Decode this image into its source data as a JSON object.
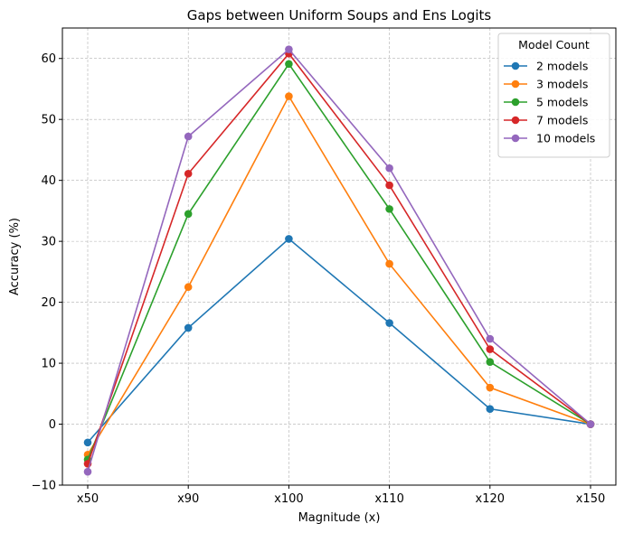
{
  "chart_data": {
    "type": "line",
    "title": "Gaps between Uniform Soups and Ens Logits",
    "xlabel": "Magnitude (x)",
    "ylabel": "Accuracy (%)",
    "categories": [
      "x50",
      "x90",
      "x100",
      "x110",
      "x120",
      "x150"
    ],
    "ylim": [
      -10,
      65
    ],
    "yticks": [
      -10,
      0,
      10,
      20,
      30,
      40,
      50,
      60
    ],
    "grid": true,
    "legend": {
      "title": "Model Count",
      "placement": "top-right"
    },
    "series": [
      {
        "name": "2 models",
        "color": "#1f77b4",
        "values": [
          -3.0,
          15.8,
          30.4,
          16.6,
          2.5,
          0.0
        ]
      },
      {
        "name": "3 models",
        "color": "#ff7f0e",
        "values": [
          -5.0,
          22.5,
          53.8,
          26.3,
          6.0,
          0.0
        ]
      },
      {
        "name": "5 models",
        "color": "#2ca02c",
        "values": [
          -5.8,
          34.5,
          59.1,
          35.3,
          10.2,
          0.0
        ]
      },
      {
        "name": "7 models",
        "color": "#d62728",
        "values": [
          -6.5,
          41.1,
          60.8,
          39.2,
          12.3,
          0.0
        ]
      },
      {
        "name": "10 models",
        "color": "#9467bd",
        "values": [
          -7.8,
          47.2,
          61.5,
          42.0,
          14.0,
          0.0
        ]
      }
    ]
  }
}
